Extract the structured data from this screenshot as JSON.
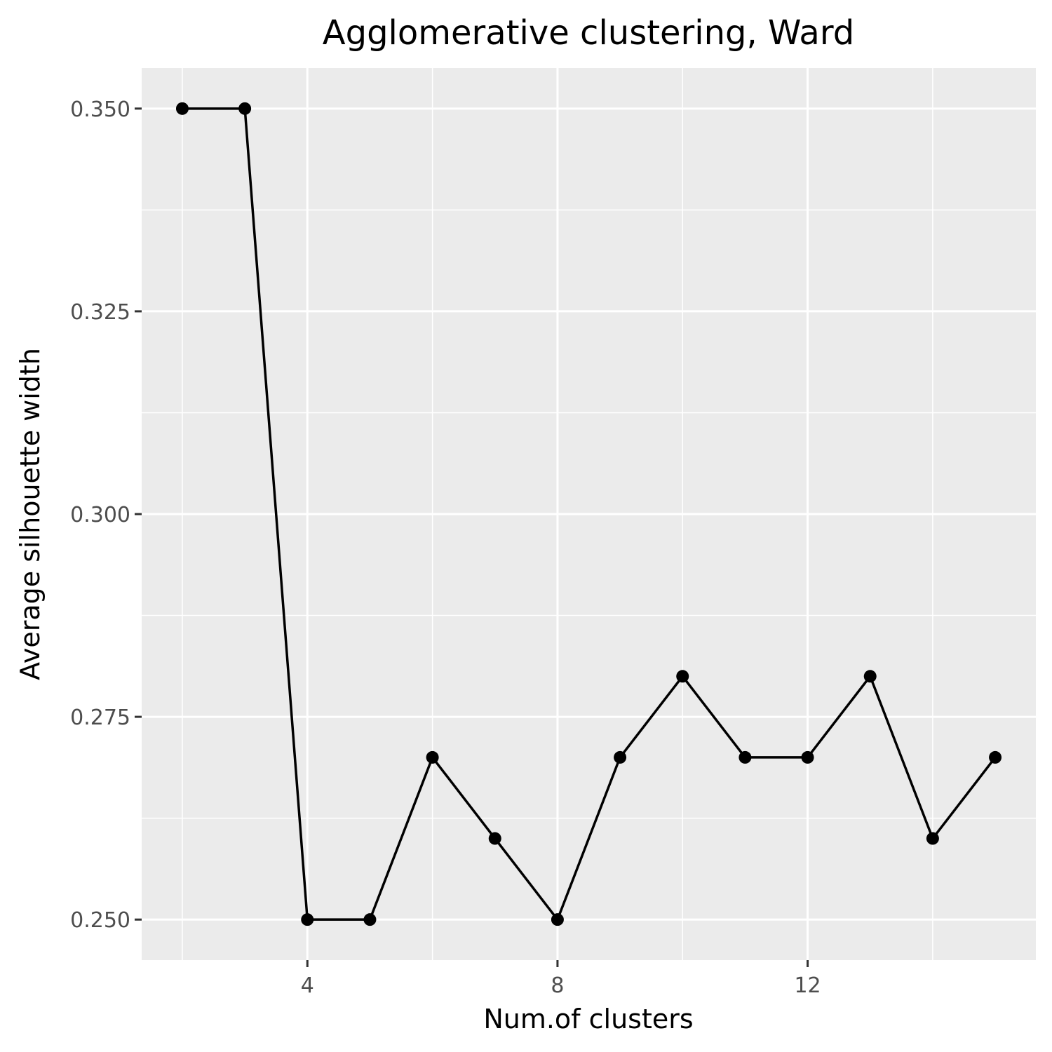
{
  "chart_data": {
    "type": "line",
    "title": "Agglomerative clustering, Ward",
    "xlabel": "Num.of clusters",
    "ylabel": "Average silhouette width",
    "x": [
      2,
      3,
      4,
      5,
      6,
      7,
      8,
      9,
      10,
      11,
      12,
      13,
      14,
      15
    ],
    "series": [
      {
        "values": [
          0.35,
          0.35,
          0.25,
          0.25,
          0.27,
          0.26,
          0.25,
          0.27,
          0.28,
          0.27,
          0.27,
          0.28,
          0.26,
          0.27
        ],
        "color": "#000000"
      }
    ],
    "xlim": [
      1.35,
      15.65
    ],
    "ylim": [
      0.245,
      0.355
    ],
    "x_ticks": [
      4,
      8,
      12
    ],
    "x_tick_labels": [
      "4",
      "8",
      "12"
    ],
    "x_minor_ticks": [
      2,
      6,
      10,
      14
    ],
    "y_ticks": [
      0.25,
      0.275,
      0.3,
      0.325,
      0.35
    ],
    "y_tick_labels": [
      "0.250",
      "0.275",
      "0.300",
      "0.325",
      "0.350"
    ],
    "y_minor_ticks": [
      0.2625,
      0.2875,
      0.3125,
      0.3375
    ],
    "grid": true,
    "panel_background": "#ebebeb",
    "grid_color": "#ffffff"
  }
}
